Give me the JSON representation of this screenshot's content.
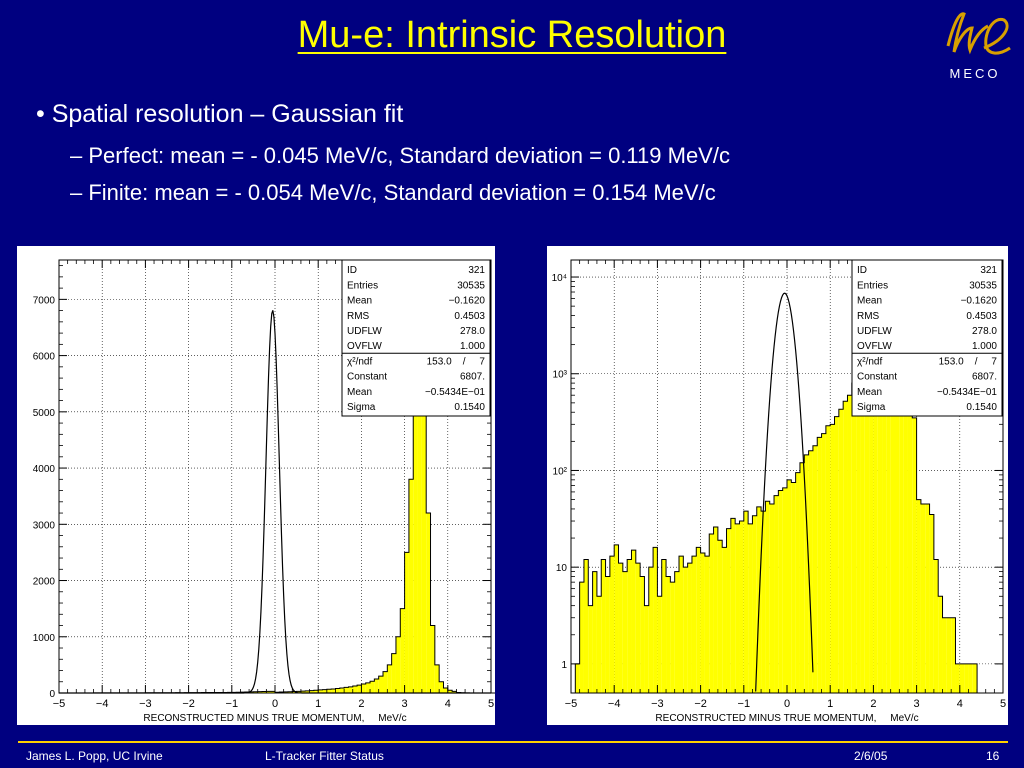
{
  "slide": {
    "title": "Mu-e: Intrinsic Resolution",
    "logo_text": "MECO",
    "bullets": [
      "• Spatial resolution – Gaussian fit",
      "– Perfect: mean = - 0.045 MeV/c, Standard deviation = 0.119 MeV/c",
      "– Finite: mean = - 0.054 MeV/c, Standard deviation = 0.154 MeV/c"
    ],
    "footer": {
      "author": "James L. Popp, UC Irvine",
      "talk": "L-Tracker Fitter Status",
      "date": "2/6/05",
      "page": "16"
    },
    "colors": {
      "background": "#000080",
      "title": "#ffff00",
      "histogram_fill": "#ffff00",
      "footer_rule": "#ffd000"
    }
  },
  "chart_data": [
    {
      "type": "bar",
      "scale": "linear",
      "xlabel": "RECONSTRUCTED MINUS TRUE MOMENTUM,     MeV/c",
      "xlim": [
        -5,
        5
      ],
      "ylim": [
        0,
        7700
      ],
      "yticks": [
        0,
        1000,
        2000,
        3000,
        4000,
        5000,
        6000,
        7000
      ],
      "ytick_labels": [
        "0",
        "1000",
        "2000",
        "3000",
        "4000",
        "5000",
        "6000",
        "7000"
      ],
      "xticks": [
        -5,
        -4,
        -3,
        -2,
        -1,
        0,
        1,
        2,
        3,
        4,
        5
      ],
      "xtick_labels": [
        "−5",
        "−4",
        "−3",
        "−2",
        "−1",
        "0",
        "1",
        "2",
        "3",
        "4",
        "5"
      ],
      "bin_width": 0.1,
      "bin_start": -5,
      "values": [
        0,
        1,
        1,
        1,
        1,
        1,
        1,
        1,
        2,
        2,
        2,
        2,
        2,
        2,
        2,
        2,
        3,
        3,
        3,
        3,
        4,
        4,
        4,
        4,
        4,
        5,
        5,
        6,
        5,
        6,
        6,
        7,
        7,
        8,
        8,
        9,
        9,
        10,
        10,
        12,
        12,
        14,
        16,
        18,
        20,
        22,
        24,
        26,
        28,
        30,
        14,
        17,
        20,
        23,
        26,
        30,
        34,
        38,
        42,
        48,
        55,
        60,
        66,
        72,
        80,
        90,
        100,
        110,
        125,
        140,
        160,
        180,
        210,
        250,
        300,
        380,
        500,
        700,
        1000,
        1500,
        2500,
        3800,
        5200,
        6900,
        5800,
        3200,
        1200,
        500,
        200,
        90,
        50,
        30,
        10,
        5,
        2,
        1,
        0,
        0,
        0,
        0,
        0
      ],
      "fit_curve": {
        "type": "gaussian",
        "constant": 6807,
        "mean": -0.05434,
        "sigma": 0.154
      },
      "stats_box": [
        [
          "ID",
          "321"
        ],
        [
          "Entries",
          "30535"
        ],
        [
          "Mean",
          "−0.1620"
        ],
        [
          "RMS",
          "0.4503"
        ],
        [
          "UDFLW",
          "278.0"
        ],
        [
          "OVFLW",
          "1.000"
        ],
        [
          "χ²/ndf",
          "153.0    /     7"
        ],
        [
          "Constant",
          "6807."
        ],
        [
          "Mean",
          "−0.5434E−01"
        ],
        [
          "Sigma",
          "0.1540"
        ]
      ]
    },
    {
      "type": "bar",
      "scale": "log",
      "xlabel": "RECONSTRUCTED MINUS TRUE MOMENTUM,     MeV/c",
      "xlim": [
        -5,
        5
      ],
      "ylim": [
        0.5,
        15000
      ],
      "yticks": [
        1,
        10,
        100,
        1000,
        10000
      ],
      "ytick_labels": [
        "1",
        "10",
        "10²",
        "10³",
        "10⁴"
      ],
      "xticks": [
        -5,
        -4,
        -3,
        -2,
        -1,
        0,
        1,
        2,
        3,
        4,
        5
      ],
      "xtick_labels": [
        "−5",
        "−4",
        "−3",
        "−2",
        "−1",
        "0",
        "1",
        "2",
        "3",
        "4",
        "5"
      ],
      "bin_width": 0.1,
      "bin_start": -5,
      "values": [
        0,
        1,
        7,
        12,
        4,
        9,
        5,
        12,
        8,
        13,
        17,
        11,
        9,
        12,
        15,
        11,
        8,
        4,
        10,
        16,
        5,
        12,
        8,
        7,
        9,
        13,
        10,
        11,
        13,
        16,
        14,
        13,
        22,
        26,
        19,
        16,
        25,
        32,
        28,
        30,
        38,
        28,
        34,
        42,
        38,
        48,
        45,
        55,
        62,
        66,
        80,
        75,
        95,
        120,
        145,
        160,
        180,
        220,
        240,
        290,
        300,
        360,
        430,
        520,
        600,
        800,
        950,
        1200,
        1400,
        1800,
        2100,
        2800,
        3600,
        4800,
        6200,
        6800,
        5500,
        3600,
        1300,
        350,
        50,
        45,
        45,
        35,
        12,
        5,
        3,
        3,
        3,
        1,
        1,
        1,
        1,
        1,
        0,
        0,
        0,
        0,
        0,
        0
      ],
      "fit_curve": {
        "type": "gaussian",
        "constant": 6807,
        "mean": -0.05434,
        "sigma": 0.154
      },
      "stats_box": [
        [
          "ID",
          "321"
        ],
        [
          "Entries",
          "30535"
        ],
        [
          "Mean",
          "−0.1620"
        ],
        [
          "RMS",
          "0.4503"
        ],
        [
          "UDFLW",
          "278.0"
        ],
        [
          "OVFLW",
          "1.000"
        ],
        [
          "χ²/ndf",
          "153.0    /     7"
        ],
        [
          "Constant",
          "6807."
        ],
        [
          "Mean",
          "−0.5434E−01"
        ],
        [
          "Sigma",
          "0.1540"
        ]
      ]
    }
  ]
}
